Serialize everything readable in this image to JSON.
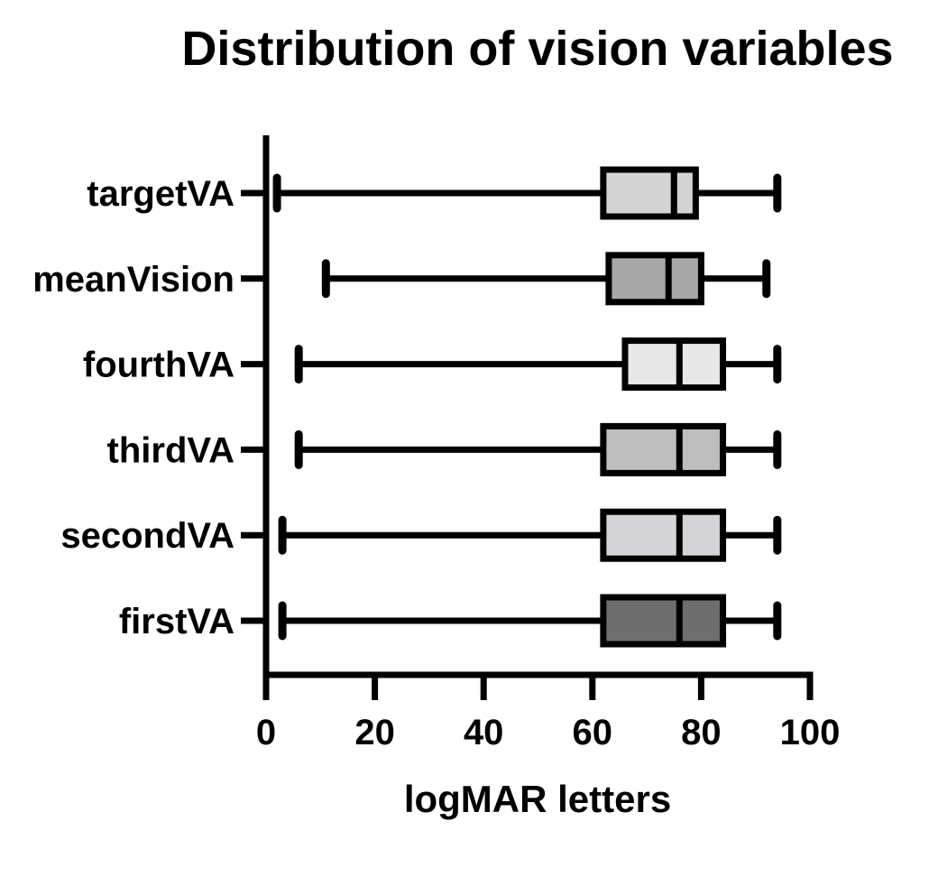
{
  "chart_data": {
    "type": "boxplot",
    "orientation": "horizontal",
    "title": "Distribution of vision variables",
    "xlabel": "logMAR letters",
    "ylabel": "",
    "xlim": [
      0,
      100
    ],
    "x_ticks": [
      "0",
      "20",
      "40",
      "60",
      "80",
      "100"
    ],
    "grid": false,
    "legend": "none",
    "categories": [
      "targetVA",
      "meanVision",
      "fourthVA",
      "thirdVA",
      "secondVA",
      "firstVA"
    ],
    "boxes": [
      {
        "name": "targetVA",
        "min": 2,
        "q1": 62,
        "median": 75,
        "q3": 79,
        "max": 94,
        "fill": "#d3d3d3"
      },
      {
        "name": "meanVision",
        "min": 11,
        "q1": 63,
        "median": 74,
        "q3": 80,
        "max": 92,
        "fill": "#a8a8a8"
      },
      {
        "name": "fourthVA",
        "min": 6,
        "q1": 66,
        "median": 76,
        "q3": 84,
        "max": 94,
        "fill": "#e8e8e8"
      },
      {
        "name": "thirdVA",
        "min": 6,
        "q1": 62,
        "median": 76,
        "q3": 84,
        "max": 94,
        "fill": "#bdbdbd"
      },
      {
        "name": "secondVA",
        "min": 3,
        "q1": 62,
        "median": 76,
        "q3": 84,
        "max": 94,
        "fill": "#d4d4d6"
      },
      {
        "name": "firstVA",
        "min": 3,
        "q1": 62,
        "median": 76,
        "q3": 84,
        "max": 94,
        "fill": "#6e6e6e"
      }
    ]
  }
}
